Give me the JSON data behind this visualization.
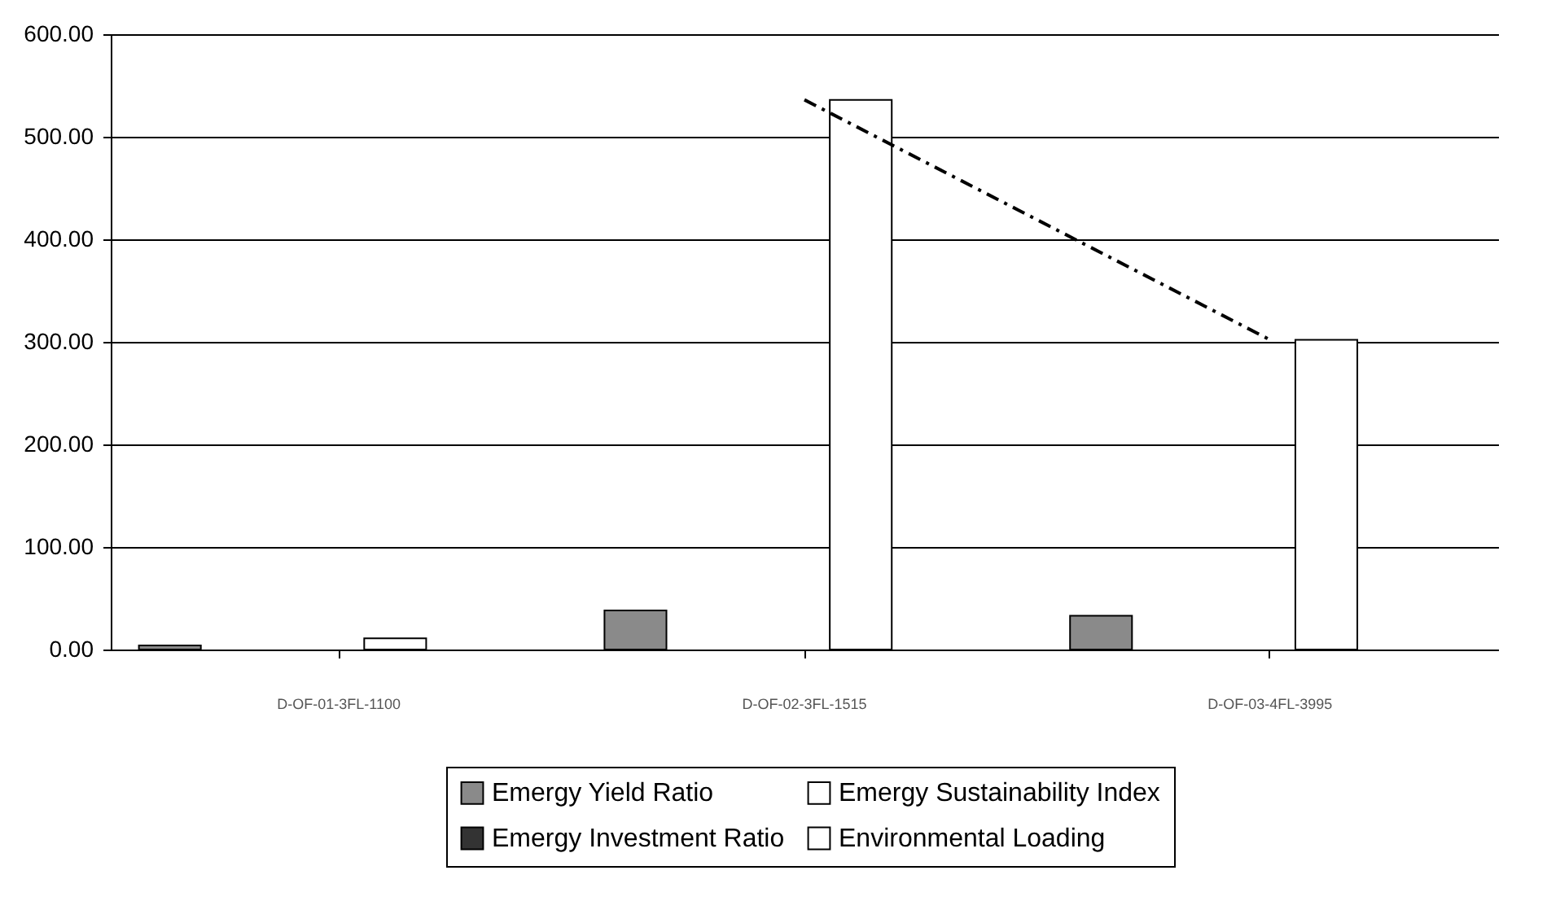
{
  "chart_data": {
    "type": "bar",
    "categories": [
      "D-OF-01-3FL-1100",
      "D-OF-02-3FL-1515",
      "D-OF-03-4FL-3995"
    ],
    "series": [
      {
        "name": "Emergy Yield Ratio",
        "color": "#8a8a8a",
        "values": [
          4,
          38,
          33
        ]
      },
      {
        "name": "Emergy Investment Ratio",
        "color": "#333333",
        "values": [
          null,
          null,
          null
        ]
      },
      {
        "name": "Emergy Sustainability Index",
        "color": "#ffffff",
        "values": [
          11,
          536,
          302
        ]
      },
      {
        "name": "Environmental Loading",
        "color": "#ffffff",
        "values": [
          null,
          null,
          null
        ]
      },
      {
        "type": "line",
        "color": "#000000",
        "line_style": "dashed",
        "values": [
          null,
          536,
          302
        ]
      }
    ],
    "ylim": [
      0,
      600
    ],
    "yticks": [
      {
        "value": 0,
        "label": "0.00"
      },
      {
        "value": 100,
        "label": "100.00"
      },
      {
        "value": 200,
        "label": "200.00"
      },
      {
        "value": 300,
        "label": "300.00"
      },
      {
        "value": 400,
        "label": "400.00"
      },
      {
        "value": 500,
        "label": "500.00"
      },
      {
        "value": 600,
        "label": "600.00"
      }
    ],
    "grid": "y",
    "legend": "bottom"
  }
}
